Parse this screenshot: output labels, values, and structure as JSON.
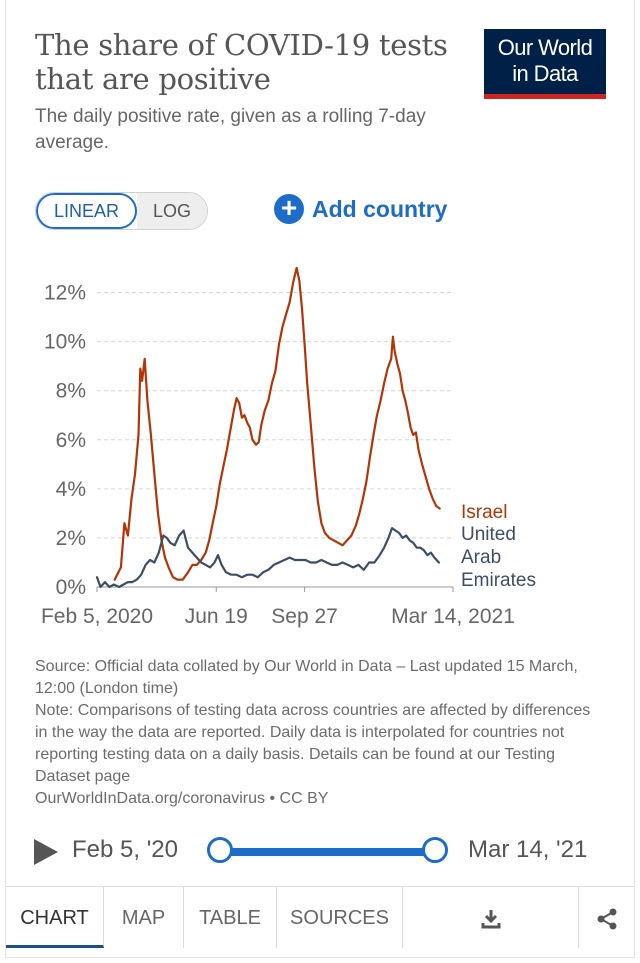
{
  "header": {
    "title": "The share of COVID-19 tests that are positive",
    "subtitle": "The daily positive rate, given as a rolling 7-day average.",
    "logo_line1": "Our World",
    "logo_line2": "in Data"
  },
  "controls": {
    "linear_label": "LINEAR",
    "log_label": "LOG",
    "add_country_label": "Add country",
    "active_scale": "linear"
  },
  "chart_data": {
    "type": "line",
    "title": "The share of COVID-19 tests that are positive",
    "ylabel": "",
    "xlabel": "",
    "ylim": [
      0,
      13
    ],
    "grid": true,
    "y_ticks": [
      "0%",
      "2%",
      "4%",
      "6%",
      "8%",
      "10%",
      "12%"
    ],
    "y_tick_values": [
      0,
      2,
      4,
      6,
      8,
      10,
      12
    ],
    "x_ticks": [
      "Feb 5, 2020",
      "Jun 19",
      "Sep 27",
      "Mar 14, 2021"
    ],
    "x_tick_dates": [
      "2020-02-05",
      "2020-06-19",
      "2020-09-27",
      "2021-03-14"
    ],
    "x_range": [
      "2020-02-05",
      "2021-03-14"
    ],
    "legend_placement": "right-end-labels",
    "series": [
      {
        "name": "Israel",
        "color": "#b13507",
        "points": [
          [
            "2020-02-25",
            0.3
          ],
          [
            "2020-03-03",
            0.8
          ],
          [
            "2020-03-07",
            2.6
          ],
          [
            "2020-03-11",
            2.1
          ],
          [
            "2020-03-15",
            3.6
          ],
          [
            "2020-03-19",
            4.6
          ],
          [
            "2020-03-23",
            6.2
          ],
          [
            "2020-03-25",
            8.9
          ],
          [
            "2020-03-27",
            8.4
          ],
          [
            "2020-03-30",
            9.3
          ],
          [
            "2020-04-02",
            7.6
          ],
          [
            "2020-04-06",
            6.2
          ],
          [
            "2020-04-10",
            4.6
          ],
          [
            "2020-04-14",
            3.0
          ],
          [
            "2020-04-18",
            1.9
          ],
          [
            "2020-04-22",
            1.2
          ],
          [
            "2020-04-26",
            0.8
          ],
          [
            "2020-05-01",
            0.4
          ],
          [
            "2020-05-06",
            0.3
          ],
          [
            "2020-05-12",
            0.3
          ],
          [
            "2020-05-18",
            0.6
          ],
          [
            "2020-05-23",
            0.9
          ],
          [
            "2020-05-28",
            0.9
          ],
          [
            "2020-06-02",
            1.1
          ],
          [
            "2020-06-07",
            1.4
          ],
          [
            "2020-06-11",
            1.9
          ],
          [
            "2020-06-15",
            2.6
          ],
          [
            "2020-06-19",
            3.3
          ],
          [
            "2020-06-23",
            4.2
          ],
          [
            "2020-06-27",
            4.9
          ],
          [
            "2020-07-01",
            5.6
          ],
          [
            "2020-07-05",
            6.4
          ],
          [
            "2020-07-09",
            7.2
          ],
          [
            "2020-07-12",
            7.7
          ],
          [
            "2020-07-15",
            7.5
          ],
          [
            "2020-07-18",
            6.9
          ],
          [
            "2020-07-21",
            7.0
          ],
          [
            "2020-07-24",
            6.7
          ],
          [
            "2020-07-27",
            6.5
          ],
          [
            "2020-07-30",
            6.0
          ],
          [
            "2020-08-03",
            5.8
          ],
          [
            "2020-08-06",
            5.9
          ],
          [
            "2020-08-09",
            6.6
          ],
          [
            "2020-08-13",
            7.2
          ],
          [
            "2020-08-17",
            7.6
          ],
          [
            "2020-08-21",
            8.3
          ],
          [
            "2020-08-25",
            8.8
          ],
          [
            "2020-08-29",
            9.9
          ],
          [
            "2020-09-02",
            10.6
          ],
          [
            "2020-09-06",
            11.1
          ],
          [
            "2020-09-10",
            11.6
          ],
          [
            "2020-09-14",
            12.4
          ],
          [
            "2020-09-18",
            13.0
          ],
          [
            "2020-09-21",
            12.5
          ],
          [
            "2020-09-24",
            11.4
          ],
          [
            "2020-09-27",
            9.9
          ],
          [
            "2020-09-30",
            8.3
          ],
          [
            "2020-10-04",
            6.6
          ],
          [
            "2020-10-08",
            4.9
          ],
          [
            "2020-10-12",
            3.5
          ],
          [
            "2020-10-16",
            2.6
          ],
          [
            "2020-10-20",
            2.2
          ],
          [
            "2020-10-25",
            2.0
          ],
          [
            "2020-10-30",
            1.9
          ],
          [
            "2020-11-04",
            1.8
          ],
          [
            "2020-11-09",
            1.7
          ],
          [
            "2020-11-14",
            1.9
          ],
          [
            "2020-11-19",
            2.1
          ],
          [
            "2020-11-24",
            2.5
          ],
          [
            "2020-11-28",
            3.0
          ],
          [
            "2020-12-02",
            3.6
          ],
          [
            "2020-12-06",
            4.3
          ],
          [
            "2020-12-10",
            5.3
          ],
          [
            "2020-12-14",
            6.2
          ],
          [
            "2020-12-18",
            7.0
          ],
          [
            "2020-12-22",
            7.6
          ],
          [
            "2020-12-26",
            8.3
          ],
          [
            "2020-12-30",
            8.9
          ],
          [
            "2021-01-03",
            9.3
          ],
          [
            "2021-01-05",
            10.2
          ],
          [
            "2021-01-07",
            9.6
          ],
          [
            "2021-01-10",
            9.1
          ],
          [
            "2021-01-13",
            8.7
          ],
          [
            "2021-01-16",
            8.0
          ],
          [
            "2021-01-19",
            7.6
          ],
          [
            "2021-01-22",
            7.1
          ],
          [
            "2021-01-25",
            6.5
          ],
          [
            "2021-01-28",
            6.2
          ],
          [
            "2021-01-31",
            6.3
          ],
          [
            "2021-02-03",
            5.6
          ],
          [
            "2021-02-07",
            5.0
          ],
          [
            "2021-02-11",
            4.5
          ],
          [
            "2021-02-15",
            4.0
          ],
          [
            "2021-02-19",
            3.6
          ],
          [
            "2021-02-23",
            3.3
          ],
          [
            "2021-02-27",
            3.2
          ]
        ]
      },
      {
        "name": "United Arab Emirates",
        "color": "#3c4e66",
        "points": [
          [
            "2020-02-05",
            0.4
          ],
          [
            "2020-02-09",
            0.0
          ],
          [
            "2020-02-14",
            0.2
          ],
          [
            "2020-02-19",
            0.0
          ],
          [
            "2020-02-24",
            0.1
          ],
          [
            "2020-03-01",
            0.0
          ],
          [
            "2020-03-06",
            0.1
          ],
          [
            "2020-03-11",
            0.2
          ],
          [
            "2020-03-16",
            0.2
          ],
          [
            "2020-03-21",
            0.3
          ],
          [
            "2020-03-26",
            0.5
          ],
          [
            "2020-03-31",
            0.9
          ],
          [
            "2020-04-05",
            1.1
          ],
          [
            "2020-04-10",
            1.0
          ],
          [
            "2020-04-15",
            1.4
          ],
          [
            "2020-04-20",
            2.1
          ],
          [
            "2020-04-24",
            2.0
          ],
          [
            "2020-04-28",
            1.8
          ],
          [
            "2020-05-03",
            1.7
          ],
          [
            "2020-05-08",
            2.1
          ],
          [
            "2020-05-13",
            2.3
          ],
          [
            "2020-05-18",
            1.6
          ],
          [
            "2020-05-23",
            1.4
          ],
          [
            "2020-05-28",
            1.2
          ],
          [
            "2020-06-02",
            1.0
          ],
          [
            "2020-06-07",
            0.9
          ],
          [
            "2020-06-12",
            0.8
          ],
          [
            "2020-06-17",
            1.0
          ],
          [
            "2020-06-21",
            1.3
          ],
          [
            "2020-06-25",
            0.9
          ],
          [
            "2020-06-30",
            0.6
          ],
          [
            "2020-07-06",
            0.5
          ],
          [
            "2020-07-12",
            0.5
          ],
          [
            "2020-07-18",
            0.4
          ],
          [
            "2020-07-24",
            0.5
          ],
          [
            "2020-07-30",
            0.5
          ],
          [
            "2020-08-05",
            0.4
          ],
          [
            "2020-08-11",
            0.6
          ],
          [
            "2020-08-17",
            0.7
          ],
          [
            "2020-08-23",
            0.9
          ],
          [
            "2020-08-29",
            1.0
          ],
          [
            "2020-09-04",
            1.1
          ],
          [
            "2020-09-10",
            1.2
          ],
          [
            "2020-09-16",
            1.1
          ],
          [
            "2020-09-22",
            1.1
          ],
          [
            "2020-09-28",
            1.1
          ],
          [
            "2020-10-04",
            1.0
          ],
          [
            "2020-10-10",
            1.0
          ],
          [
            "2020-10-16",
            1.1
          ],
          [
            "2020-10-22",
            1.0
          ],
          [
            "2020-10-28",
            0.9
          ],
          [
            "2020-11-03",
            0.9
          ],
          [
            "2020-11-09",
            1.0
          ],
          [
            "2020-11-15",
            0.9
          ],
          [
            "2020-11-21",
            0.8
          ],
          [
            "2020-11-27",
            0.9
          ],
          [
            "2020-12-03",
            0.7
          ],
          [
            "2020-12-09",
            1.0
          ],
          [
            "2020-12-15",
            1.0
          ],
          [
            "2020-12-21",
            1.3
          ],
          [
            "2020-12-26",
            1.6
          ],
          [
            "2020-12-31",
            2.0
          ],
          [
            "2021-01-04",
            2.4
          ],
          [
            "2021-01-08",
            2.3
          ],
          [
            "2021-01-12",
            2.2
          ],
          [
            "2021-01-16",
            2.0
          ],
          [
            "2021-01-20",
            2.1
          ],
          [
            "2021-01-24",
            1.9
          ],
          [
            "2021-01-28",
            1.8
          ],
          [
            "2021-02-01",
            1.6
          ],
          [
            "2021-02-05",
            1.6
          ],
          [
            "2021-02-09",
            1.5
          ],
          [
            "2021-02-13",
            1.3
          ],
          [
            "2021-02-17",
            1.4
          ],
          [
            "2021-02-21",
            1.2
          ],
          [
            "2021-02-26",
            1.0
          ]
        ]
      }
    ],
    "end_labels": [
      {
        "series": "Israel",
        "lines": [
          "Israel"
        ]
      },
      {
        "series": "United Arab Emirates",
        "lines": [
          "United",
          "Arab",
          "Emirates"
        ]
      }
    ]
  },
  "footer": {
    "source_line": "Source: Official data collated by Our World in Data – Last updated 15 March, 12:00 (London time)",
    "note_line": "Note: Comparisons of testing data across countries are affected by differences in the way the data are reported. Daily data is interpolated for countries not reporting testing data on a daily basis. Details can be found at our Testing Dataset page",
    "license_line": "OurWorldInData.org/coronavirus • CC BY"
  },
  "timeline": {
    "start_label": "Feb 5, '20",
    "end_label": "Mar 14, '21"
  },
  "tabs": {
    "chart": "CHART",
    "map": "MAP",
    "table": "TABLE",
    "sources": "SOURCES",
    "download_icon": "download-icon",
    "share_icon": "share-icon",
    "active": "chart"
  }
}
